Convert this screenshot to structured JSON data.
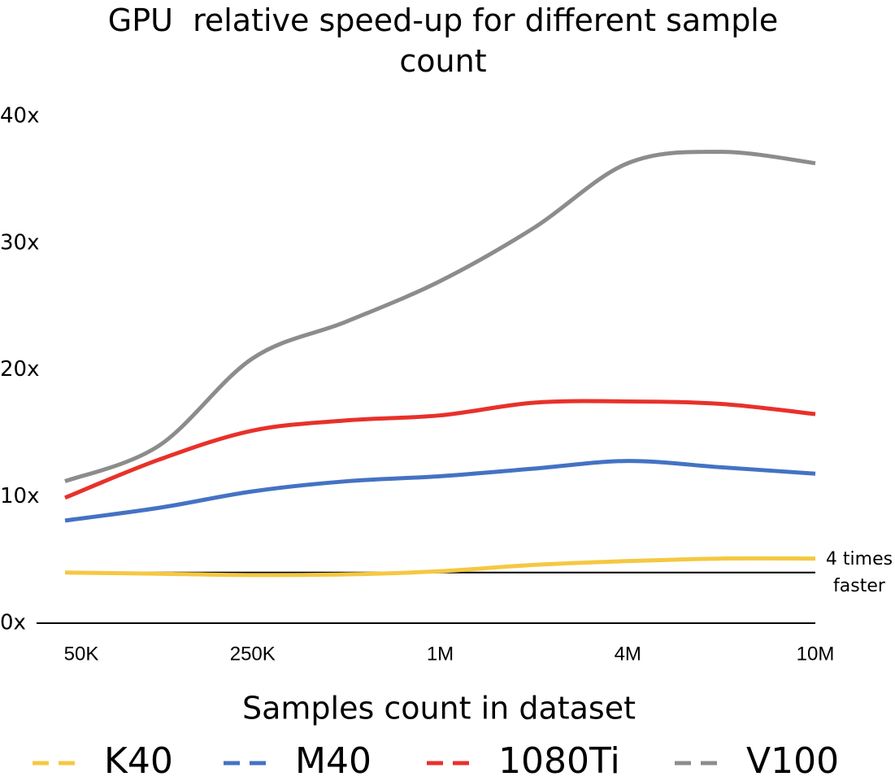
{
  "chart_data": {
    "type": "line",
    "title": "GPU  relative speed-up for different sample count",
    "xlabel": "Samples count in dataset",
    "categories": [
      "50K",
      null,
      "250K",
      null,
      "1M",
      null,
      "4M",
      null,
      "10M"
    ],
    "series": [
      {
        "name": "K40",
        "color": "#f5c842",
        "values": [
          4.0,
          3.9,
          3.8,
          3.85,
          4.1,
          4.6,
          4.9,
          5.1,
          5.1
        ]
      },
      {
        "name": "M40",
        "color": "#4472c4",
        "values": [
          8.1,
          9.1,
          10.4,
          11.2,
          11.6,
          12.2,
          12.8,
          12.3,
          11.8
        ]
      },
      {
        "name": "1080Ti",
        "color": "#e8312a",
        "values": [
          9.9,
          12.9,
          15.2,
          16.0,
          16.4,
          17.4,
          17.5,
          17.3,
          16.5
        ]
      },
      {
        "name": "V100",
        "color": "#8c8c8c",
        "values": [
          11.2,
          14.0,
          20.9,
          23.8,
          27.0,
          31.2,
          36.3,
          37.2,
          36.3
        ]
      }
    ],
    "ylim": [
      0,
      40
    ],
    "yticks": [
      {
        "value": 0,
        "label": "0x"
      },
      {
        "value": 10,
        "label": "10x"
      },
      {
        "value": 20,
        "label": "20x"
      },
      {
        "value": 30,
        "label": "30x"
      },
      {
        "value": 40,
        "label": "40x"
      }
    ],
    "reference_line": {
      "value": 4,
      "label": [
        "4 times",
        "faster"
      ]
    },
    "grid": false
  }
}
